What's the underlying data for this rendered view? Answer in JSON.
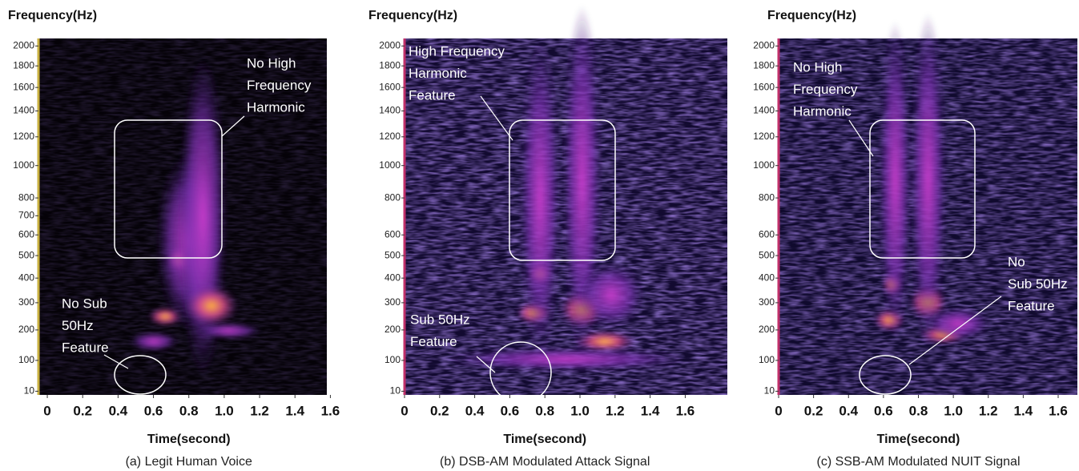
{
  "chart_data": [
    {
      "type": "spectrogram",
      "ylabel": "Frequency(Hz)",
      "xlabel": "Time(second)",
      "caption": "(a) Legit Human Voice",
      "xlim": [
        -0.05,
        1.58
      ],
      "xticks": [
        0,
        0.2,
        0.4,
        0.6,
        0.8,
        {
          "value": 1,
          "label": "1.0"
        },
        1.2,
        1.4,
        1.6
      ],
      "ylim": [
        0,
        2080
      ],
      "yscale": "mel",
      "yticks": [
        10,
        100,
        200,
        300,
        400,
        500,
        600,
        700,
        800,
        1000,
        1200,
        1400,
        1600,
        1800,
        2000
      ],
      "annotations": [
        {
          "lines": [
            "No High",
            "Frequency",
            "Harmonic"
          ]
        },
        {
          "lines": [
            "No Sub",
            "50Hz",
            "Feature"
          ]
        }
      ]
    },
    {
      "type": "spectrogram",
      "ylabel": "Frequency(Hz)",
      "xlabel": "Time(second)",
      "caption": "(b) DSB-AM Modulated Attack Signal",
      "xlim": [
        0,
        1.84
      ],
      "xticks": [
        0,
        0.2,
        0.4,
        0.6,
        0.8,
        {
          "value": 1,
          "label": "1.0"
        },
        1.2,
        1.4,
        1.6
      ],
      "ylim": [
        0,
        2080
      ],
      "yscale": "mel",
      "yticks": [
        10,
        100,
        200,
        300,
        400,
        500,
        600,
        800,
        1000,
        1200,
        1400,
        1600,
        1800,
        2000
      ],
      "annotations": [
        {
          "lines": [
            "High Frequency",
            "Harmonic",
            "Feature"
          ]
        },
        {
          "lines": [
            "Sub 50Hz",
            "Feature"
          ]
        }
      ]
    },
    {
      "type": "spectrogram",
      "ylabel": "Frequency(Hz)",
      "xlabel": "Time(second)",
      "caption": "(c) SSB-AM Modulated NUIT Signal",
      "xlim": [
        0,
        1.71
      ],
      "xticks": [
        0,
        0.2,
        0.4,
        0.6,
        0.8,
        {
          "value": 1,
          "label": "1.0"
        },
        1.2,
        1.4,
        1.6
      ],
      "ylim": [
        0,
        2080
      ],
      "yscale": "mel",
      "yticks": [
        10,
        100,
        200,
        300,
        400,
        500,
        600,
        800,
        1000,
        1200,
        1400,
        1600,
        1800,
        2000
      ],
      "annotations": [
        {
          "lines": [
            "No High",
            "Frequency",
            "Harmonic"
          ]
        },
        {
          "lines": [
            "No",
            "Sub 50Hz",
            "Feature"
          ]
        }
      ]
    }
  ]
}
